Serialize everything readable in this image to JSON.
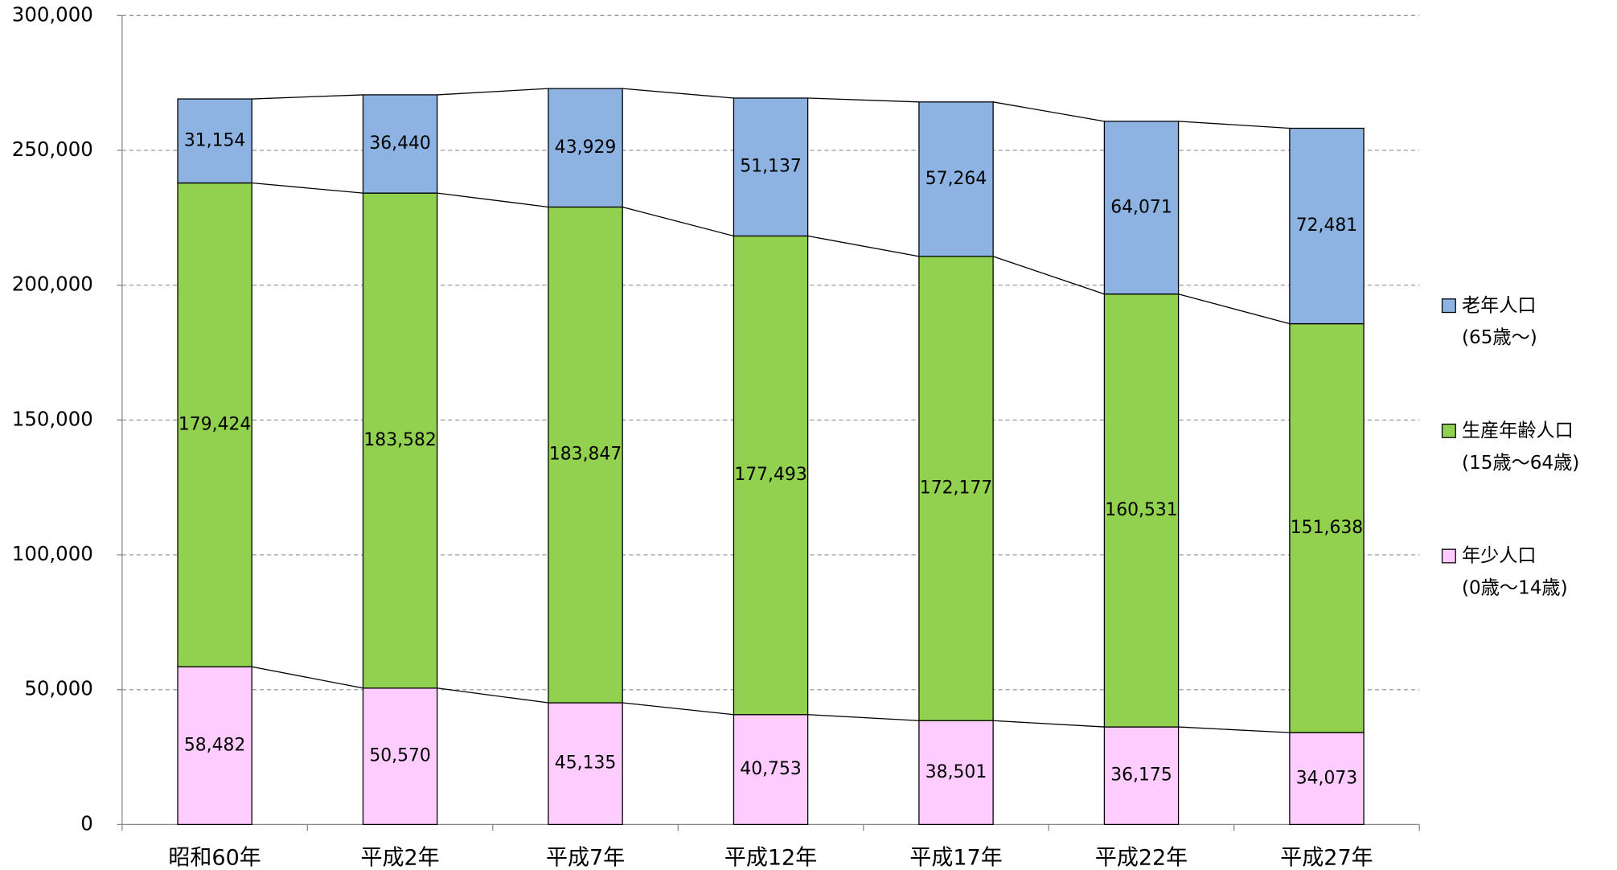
{
  "chart_data": {
    "type": "stacked_bar",
    "categories": [
      "昭和60年",
      "平成2年",
      "平成7年",
      "平成12年",
      "平成17年",
      "平成22年",
      "平成27年"
    ],
    "series": [
      {
        "name": "年少人口",
        "age_range": "(0歳～14歳)",
        "color": "#ffccff",
        "values": [
          58482,
          50570,
          45135,
          40753,
          38501,
          36175,
          34073
        ],
        "value_labels": [
          "58,482",
          "50,570",
          "45,135",
          "40,753",
          "38,501",
          "36,175",
          "34,073"
        ]
      },
      {
        "name": "生産年齢人口",
        "age_range": "(15歳～64歳)",
        "color": "#92d050",
        "values": [
          179424,
          183582,
          183847,
          177493,
          172177,
          160531,
          151638
        ],
        "value_labels": [
          "179,424",
          "183,582",
          "183,847",
          "177,493",
          "172,177",
          "160,531",
          "151,638"
        ]
      },
      {
        "name": "老年人口",
        "age_range": "(65歳～)",
        "color": "#8db3e2",
        "values": [
          31154,
          36440,
          43929,
          51137,
          57264,
          64071,
          72481
        ],
        "value_labels": [
          "31,154",
          "36,440",
          "43,929",
          "51,137",
          "57,264",
          "64,071",
          "72,481"
        ]
      }
    ],
    "ylim": [
      0,
      300000
    ],
    "yticks": [
      0,
      {
        "value": 50000,
        "label": "50,000"
      },
      {
        "value": 100000,
        "label": "100,000"
      },
      {
        "value": 150000,
        "label": "150,000"
      },
      {
        "value": 200000,
        "label": "200,000"
      },
      {
        "value": 250000,
        "label": "250,000"
      },
      {
        "value": 300000,
        "label": "300,000"
      }
    ],
    "grid": true,
    "legend": "right"
  }
}
